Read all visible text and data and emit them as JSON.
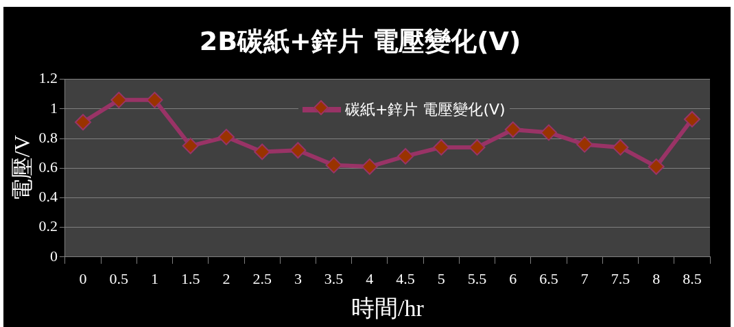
{
  "chart_data": {
    "type": "line",
    "title": "2B碳紙+鋅片 電壓變化(V)",
    "xlabel": "時間/hr",
    "ylabel": "電壓/V",
    "categories": [
      "0",
      "0.5",
      "1",
      "1.5",
      "2",
      "2.5",
      "3",
      "3.5",
      "4",
      "4.5",
      "5",
      "5.5",
      "6",
      "6.5",
      "7",
      "7.5",
      "8",
      "8.5"
    ],
    "series": [
      {
        "name": "碳紙+鋅片 電壓變化(V)",
        "color": "#993366",
        "values": [
          0.91,
          1.06,
          1.06,
          0.75,
          0.81,
          0.71,
          0.72,
          0.62,
          0.61,
          0.68,
          0.74,
          0.74,
          0.86,
          0.84,
          0.76,
          0.74,
          0.61,
          0.93
        ]
      }
    ],
    "ylim": [
      0,
      1.2
    ],
    "yticks": [
      0,
      0.2,
      0.4,
      0.6,
      0.8,
      1,
      1.2
    ],
    "grid": "y",
    "legend": "top",
    "marker": "diamond",
    "line_style": "solid"
  }
}
